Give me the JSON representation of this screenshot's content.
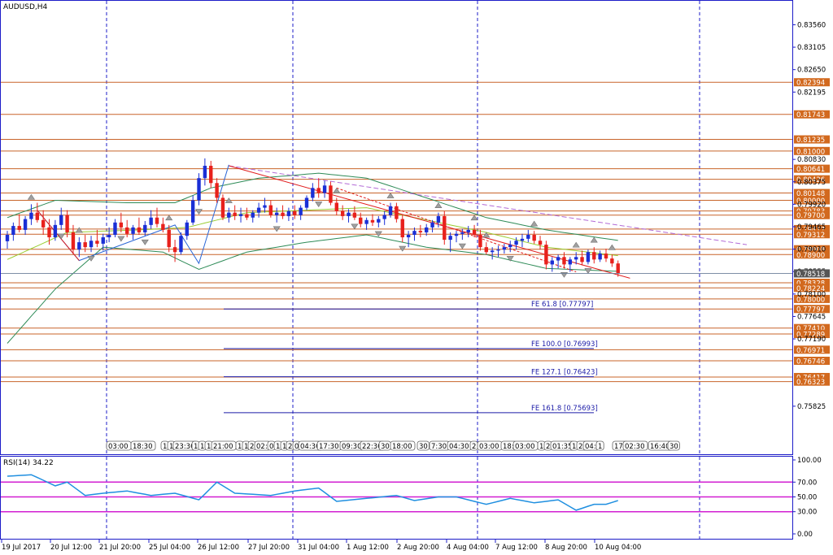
{
  "window": {
    "symbol_title": "AUDUSD,H4"
  },
  "colors": {
    "bull": "#1a2fd6",
    "bear": "#e8211c",
    "level": "#c8642a",
    "level_box": "#d2691e",
    "bb": "#2e8b57",
    "bb_mid": "#9acd32",
    "zigzag_red": "#e11c1c",
    "zigzag_blue": "#2a66d6",
    "trend_purple": "#b36bd6",
    "fe": "#1c1ca8",
    "rsi": "#1f8fe0",
    "rsi_level": "#d21fd2",
    "axis": "#1c1cc8",
    "separator": "#1c1cc8"
  },
  "chart_data": [
    {
      "type": "candlestick",
      "title": "AUDUSD,H4",
      "price_axis_ticks": [
        "0.83560",
        "0.83105",
        "0.82650",
        "0.82195",
        "0.80830",
        "0.80375",
        "0.79920",
        "0.79465",
        "0.79010",
        "0.78555",
        "0.78100",
        "0.77645",
        "0.77190",
        "0.75825"
      ],
      "ylim": [
        0.7495,
        0.8393
      ],
      "time_axis_ticks": [
        "19 Jul 2017",
        "20 Jul 12:00",
        "21 Jul 20:00",
        "25 Jul 04:00",
        "26 Jul 12:00",
        "27 Jul 20:00",
        "31 Jul 04:00",
        "1 Aug 12:00",
        "2 Aug 20:00",
        "4 Aug 04:00",
        "7 Aug 12:00",
        "8 Aug 20:00",
        "10 Aug 04:00"
      ],
      "day_separators": [
        "21 Jul 2017",
        "26 Jul 2017",
        "2 Aug 2017",
        "8 Aug 2017",
        "14 Aug 2017"
      ],
      "horizontal_levels": [
        "0.82394",
        "0.81743",
        "0.81235",
        "0.81000",
        "0.80641",
        "0.80426",
        "0.80148",
        "0.80000",
        "0.79783",
        "0.79700",
        "0.79417",
        "0.79312",
        "0.79008",
        "0.78900",
        "0.78328",
        "0.78224",
        "0.78000",
        "0.77797",
        "0.77410",
        "0.77289",
        "0.76971",
        "0.76746",
        "0.76417",
        "0.76323"
      ],
      "current_price": "0.78518",
      "fibonacci_expansion": [
        {
          "label": "FE 61.8",
          "value": "[0.77797]"
        },
        {
          "label": "FE 100.0",
          "value": "[0.76993]"
        },
        {
          "label": "FE 127.1",
          "value": "[0.76423]"
        },
        {
          "label": "FE 161.8",
          "value": "[0.75693]"
        }
      ],
      "event_labels": [
        "03:00",
        "18:30",
        "1",
        "1",
        "23:30",
        "1",
        "1",
        "1",
        "21:00",
        "1",
        "1",
        "2",
        "02:",
        "0",
        "1",
        "1",
        "2",
        "0",
        "04:30",
        "17:30",
        "09:30",
        "22:30",
        "30",
        "18:00",
        "30",
        "7:30",
        "04:30",
        "2",
        "03:00",
        "18:",
        "03:00",
        "1",
        "2",
        "01:35",
        "1",
        "20:",
        "04:",
        "1",
        "17:",
        "02:30",
        "16:40",
        "30"
      ],
      "candles": [
        [
          0.7917,
          0.7938,
          0.7902,
          0.793
        ],
        [
          0.793,
          0.7955,
          0.7918,
          0.7948
        ],
        [
          0.7948,
          0.7972,
          0.7935,
          0.794
        ],
        [
          0.794,
          0.7968,
          0.793,
          0.7962
        ],
        [
          0.7962,
          0.7992,
          0.795,
          0.7975
        ],
        [
          0.7975,
          0.7995,
          0.7955,
          0.796
        ],
        [
          0.796,
          0.798,
          0.793,
          0.7945
        ],
        [
          0.7945,
          0.7962,
          0.791,
          0.7925
        ],
        [
          0.7925,
          0.796,
          0.7918,
          0.795
        ],
        [
          0.795,
          0.7985,
          0.794,
          0.797
        ],
        [
          0.797,
          0.798,
          0.7925,
          0.7935
        ],
        [
          0.7935,
          0.795,
          0.789,
          0.79
        ],
        [
          0.79,
          0.7925,
          0.7885,
          0.7915
        ],
        [
          0.7915,
          0.793,
          0.7895,
          0.7905
        ],
        [
          0.7905,
          0.7928,
          0.7895,
          0.7918
        ],
        [
          0.7918,
          0.794,
          0.7905,
          0.7912
        ],
        [
          0.7912,
          0.7932,
          0.7898,
          0.7925
        ],
        [
          0.7925,
          0.7945,
          0.7915,
          0.793
        ],
        [
          0.793,
          0.7962,
          0.7925,
          0.7955
        ],
        [
          0.7955,
          0.7975,
          0.7935,
          0.7945
        ],
        [
          0.7945,
          0.796,
          0.7925,
          0.7932
        ],
        [
          0.7932,
          0.795,
          0.792,
          0.7945
        ],
        [
          0.7945,
          0.7965,
          0.793,
          0.7935
        ],
        [
          0.7935,
          0.7958,
          0.7928,
          0.795
        ],
        [
          0.795,
          0.798,
          0.7942,
          0.7965
        ],
        [
          0.7965,
          0.7985,
          0.7945,
          0.7952
        ],
        [
          0.7952,
          0.7965,
          0.7935,
          0.794
        ],
        [
          0.794,
          0.795,
          0.7895,
          0.7905
        ],
        [
          0.7905,
          0.792,
          0.7875,
          0.7895
        ],
        [
          0.7895,
          0.7935,
          0.789,
          0.7928
        ],
        [
          0.7928,
          0.796,
          0.792,
          0.7955
        ],
        [
          0.7955,
          0.801,
          0.795,
          0.8
        ],
        [
          0.8,
          0.8055,
          0.799,
          0.8045
        ],
        [
          0.8045,
          0.8085,
          0.803,
          0.807
        ],
        [
          0.807,
          0.808,
          0.8025,
          0.8035
        ],
        [
          0.8035,
          0.8045,
          0.7995,
          0.8005
        ],
        [
          0.8005,
          0.8012,
          0.796,
          0.7965
        ],
        [
          0.7965,
          0.7985,
          0.7955,
          0.7975
        ],
        [
          0.7975,
          0.799,
          0.796,
          0.7968
        ],
        [
          0.7968,
          0.7985,
          0.7955,
          0.7972
        ],
        [
          0.7972,
          0.7985,
          0.796,
          0.7965
        ],
        [
          0.7965,
          0.798,
          0.7955,
          0.7975
        ],
        [
          0.7975,
          0.7995,
          0.7965,
          0.7985
        ],
        [
          0.7985,
          0.8005,
          0.7975,
          0.799
        ],
        [
          0.799,
          0.8,
          0.7965,
          0.797
        ],
        [
          0.797,
          0.7985,
          0.7955,
          0.7975
        ],
        [
          0.7975,
          0.799,
          0.7962,
          0.7968
        ],
        [
          0.7968,
          0.7985,
          0.7958,
          0.7978
        ],
        [
          0.7978,
          0.799,
          0.7962,
          0.797
        ],
        [
          0.797,
          0.799,
          0.796,
          0.7985
        ],
        [
          0.7985,
          0.801,
          0.798,
          0.8005
        ],
        [
          0.8005,
          0.8035,
          0.7998,
          0.8025
        ],
        [
          0.8025,
          0.8045,
          0.8005,
          0.8015
        ],
        [
          0.8015,
          0.804,
          0.8005,
          0.803
        ],
        [
          0.803,
          0.8038,
          0.799,
          0.7995
        ],
        [
          0.7995,
          0.8005,
          0.797,
          0.7978
        ],
        [
          0.7978,
          0.799,
          0.796,
          0.7968
        ],
        [
          0.7968,
          0.7982,
          0.7955,
          0.7975
        ],
        [
          0.7975,
          0.7988,
          0.796,
          0.7965
        ],
        [
          0.7965,
          0.7975,
          0.7945,
          0.7952
        ],
        [
          0.7952,
          0.7965,
          0.794,
          0.796
        ],
        [
          0.796,
          0.7972,
          0.7948,
          0.7955
        ],
        [
          0.7955,
          0.7968,
          0.7945,
          0.7962
        ],
        [
          0.7962,
          0.7978,
          0.795,
          0.797
        ],
        [
          0.797,
          0.7995,
          0.7965,
          0.7988
        ],
        [
          0.7988,
          0.7995,
          0.7955,
          0.7962
        ],
        [
          0.7962,
          0.797,
          0.7915,
          0.7925
        ],
        [
          0.7925,
          0.7938,
          0.7905,
          0.793
        ],
        [
          0.793,
          0.7945,
          0.7918,
          0.7938
        ],
        [
          0.7938,
          0.795,
          0.7925,
          0.7935
        ],
        [
          0.7935,
          0.7952,
          0.7928,
          0.7945
        ],
        [
          0.7945,
          0.796,
          0.7935,
          0.7955
        ],
        [
          0.7955,
          0.7975,
          0.7945,
          0.7968
        ],
        [
          0.7968,
          0.7978,
          0.791,
          0.792
        ],
        [
          0.792,
          0.7935,
          0.7895,
          0.7928
        ],
        [
          0.7928,
          0.7938,
          0.7915,
          0.7932
        ],
        [
          0.7932,
          0.7942,
          0.792,
          0.7935
        ],
        [
          0.7935,
          0.7948,
          0.7925,
          0.794
        ],
        [
          0.794,
          0.795,
          0.7925,
          0.793
        ],
        [
          0.793,
          0.794,
          0.7898,
          0.7905
        ],
        [
          0.7905,
          0.7915,
          0.789,
          0.7895
        ],
        [
          0.7895,
          0.7905,
          0.788,
          0.7898
        ],
        [
          0.7898,
          0.7908,
          0.7885,
          0.79
        ],
        [
          0.79,
          0.7912,
          0.7892,
          0.7905
        ],
        [
          0.7905,
          0.7918,
          0.7895,
          0.791
        ],
        [
          0.791,
          0.7925,
          0.79,
          0.7918
        ],
        [
          0.7918,
          0.7932,
          0.7905,
          0.7922
        ],
        [
          0.7922,
          0.794,
          0.7915,
          0.793
        ],
        [
          0.793,
          0.7938,
          0.7912,
          0.7918
        ],
        [
          0.7918,
          0.7928,
          0.79,
          0.791
        ],
        [
          0.791,
          0.7918,
          0.786,
          0.787
        ],
        [
          0.787,
          0.7885,
          0.7855,
          0.7878
        ],
        [
          0.7878,
          0.789,
          0.7862,
          0.7885
        ],
        [
          0.7885,
          0.7895,
          0.7862,
          0.787
        ],
        [
          0.787,
          0.7885,
          0.7855,
          0.788
        ],
        [
          0.788,
          0.7895,
          0.787,
          0.7885
        ],
        [
          0.7885,
          0.7898,
          0.7868,
          0.7875
        ],
        [
          0.7875,
          0.79,
          0.787,
          0.7895
        ],
        [
          0.7895,
          0.7905,
          0.7872,
          0.788
        ],
        [
          0.788,
          0.7898,
          0.7875,
          0.7892
        ],
        [
          0.7892,
          0.7902,
          0.7875,
          0.7882
        ],
        [
          0.7882,
          0.789,
          0.7865,
          0.7872
        ],
        [
          0.7872,
          0.7878,
          0.7845,
          0.7852
        ]
      ],
      "bollinger": {
        "upper_anchors": [
          [
            0,
            0.7965
          ],
          [
            8,
            0.8
          ],
          [
            20,
            0.7995
          ],
          [
            28,
            0.7995
          ],
          [
            34,
            0.8025
          ],
          [
            42,
            0.8045
          ],
          [
            52,
            0.8055
          ],
          [
            60,
            0.8045
          ],
          [
            70,
            0.8005
          ],
          [
            80,
            0.7965
          ],
          [
            90,
            0.794
          ],
          [
            104,
            0.7915
          ]
        ],
        "middle_anchors": [
          [
            0,
            0.788
          ],
          [
            10,
            0.7935
          ],
          [
            22,
            0.794
          ],
          [
            30,
            0.7945
          ],
          [
            40,
            0.7975
          ],
          [
            50,
            0.798
          ],
          [
            60,
            0.7985
          ],
          [
            70,
            0.796
          ],
          [
            80,
            0.7935
          ],
          [
            90,
            0.7905
          ],
          [
            104,
            0.7885
          ]
        ],
        "lower_anchors": [
          [
            0,
            0.771
          ],
          [
            8,
            0.782
          ],
          [
            16,
            0.7905
          ],
          [
            26,
            0.7895
          ],
          [
            32,
            0.786
          ],
          [
            40,
            0.7895
          ],
          [
            50,
            0.7915
          ],
          [
            60,
            0.793
          ],
          [
            70,
            0.7905
          ],
          [
            80,
            0.789
          ],
          [
            90,
            0.7862
          ],
          [
            104,
            0.7855
          ]
        ]
      },
      "rsi": {
        "label": "RSI(14) 34.22",
        "ticks": [
          "100.00",
          "70.00",
          "50.00",
          "30.00",
          "0.00"
        ],
        "levels": [
          70,
          50,
          30
        ],
        "ylim": [
          0,
          100
        ],
        "anchors": [
          [
            0,
            78
          ],
          [
            4,
            80
          ],
          [
            8,
            65
          ],
          [
            10,
            70
          ],
          [
            13,
            52
          ],
          [
            16,
            55
          ],
          [
            20,
            58
          ],
          [
            24,
            52
          ],
          [
            28,
            55
          ],
          [
            32,
            46
          ],
          [
            35,
            70
          ],
          [
            38,
            55
          ],
          [
            44,
            52
          ],
          [
            48,
            58
          ],
          [
            52,
            62
          ],
          [
            55,
            44
          ],
          [
            60,
            48
          ],
          [
            65,
            52
          ],
          [
            68,
            45
          ],
          [
            72,
            50
          ],
          [
            75,
            50
          ],
          [
            80,
            40
          ],
          [
            84,
            48
          ],
          [
            88,
            42
          ],
          [
            92,
            46
          ],
          [
            95,
            32
          ],
          [
            98,
            40
          ],
          [
            100,
            40
          ],
          [
            102,
            45
          ],
          [
            104,
            34
          ]
        ]
      }
    }
  ]
}
